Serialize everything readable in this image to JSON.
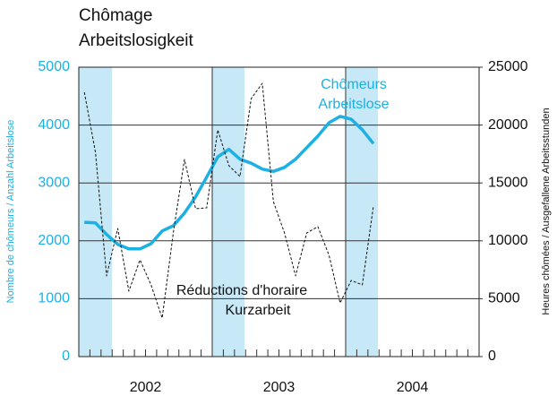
{
  "chart_data": {
    "type": "line",
    "title": "Chômage",
    "subtitle": "Arbeitslosigkeit",
    "ylabel": "Nombre de chômeurs / Anzahl Arbeitslose",
    "y2label": "Heures chômées / Ausgefallene Arbeitsstunden",
    "categories": [
      null,
      null,
      null,
      null,
      null,
      null,
      "2002",
      null,
      null,
      null,
      null,
      null,
      null,
      null,
      null,
      null,
      null,
      null,
      "2003",
      null,
      null,
      null,
      null,
      null,
      null,
      null,
      null,
      null,
      null,
      null,
      "2004",
      null,
      null,
      null,
      null,
      null
    ],
    "ylim": [
      0,
      5000
    ],
    "yticks": [
      0,
      1000,
      2000,
      3000,
      4000,
      5000
    ],
    "y2lim": [
      0,
      25000
    ],
    "y2ticks": [
      0,
      5000,
      10000,
      15000,
      20000,
      25000
    ],
    "grid": true,
    "series": [
      {
        "name": [
          "Chômeurs",
          "Arbeitslose"
        ],
        "color": "#1cb0e4",
        "dashed": false,
        "values": [
          2320,
          2310,
          2110,
          1940,
          1860,
          1860,
          1950,
          2170,
          2260,
          2480,
          2760,
          3100,
          3450,
          3580,
          3410,
          3340,
          3240,
          3200,
          3270,
          3410,
          3610,
          3810,
          4040,
          4150,
          4100,
          3920,
          3680,
          null,
          null,
          null,
          null,
          null,
          null,
          null,
          null,
          null
        ]
      },
      {
        "name": [
          "Réductions d'horaire",
          "Kurzarbeit"
        ],
        "color": "#111111",
        "dashed": true,
        "axis": "y2",
        "values": [
          22830,
          17650,
          6970,
          11070,
          5650,
          8360,
          6190,
          3330,
          10680,
          17030,
          12770,
          12850,
          19580,
          16490,
          15560,
          22290,
          23610,
          13390,
          10680,
          6970,
          10680,
          11220,
          8750,
          4640,
          6580,
          6190,
          13000,
          null,
          null,
          null,
          null,
          null,
          null,
          null,
          null,
          null
        ]
      }
    ]
  }
}
